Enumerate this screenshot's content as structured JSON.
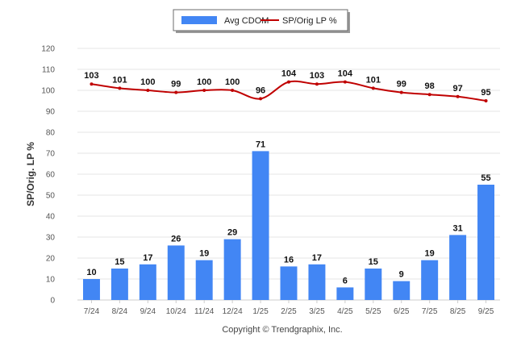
{
  "chart_data": {
    "type": "bar",
    "categories": [
      "7/24",
      "8/24",
      "9/24",
      "10/24",
      "11/24",
      "12/24",
      "1/25",
      "2/25",
      "3/25",
      "4/25",
      "5/25",
      "6/25",
      "7/25",
      "8/25",
      "9/25"
    ],
    "series": [
      {
        "name": "Avg CDOM",
        "type": "bar",
        "values": [
          10,
          15,
          17,
          26,
          19,
          29,
          71,
          16,
          17,
          6,
          15,
          9,
          19,
          31,
          55
        ],
        "color": "#4286f4"
      },
      {
        "name": "SP/Orig LP %",
        "type": "line",
        "values": [
          103,
          101,
          100,
          99,
          100,
          100,
          96,
          104,
          103,
          104,
          101,
          99,
          98,
          97,
          95
        ],
        "color": "#c00000"
      }
    ],
    "title": "",
    "xlabel": "",
    "ylabel": "SP/Orig. LP %",
    "ylim": [
      0,
      120
    ],
    "yticks": [
      0,
      10,
      20,
      30,
      40,
      50,
      60,
      70,
      80,
      90,
      100,
      110,
      120
    ],
    "grid": true,
    "legend_placement": "top-center"
  },
  "footer": {
    "copyright": "Copyright © Trendgraphix, Inc."
  }
}
